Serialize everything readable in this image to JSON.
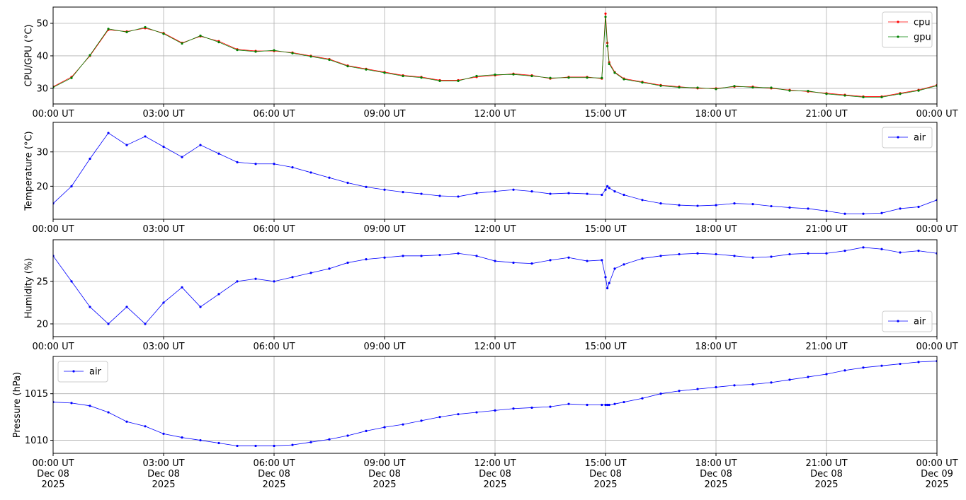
{
  "chart_data": [
    {
      "type": "line",
      "ylabel": "CPU/GPU (°C)",
      "legend": "upper right",
      "grid": true,
      "xlim": [
        0,
        24
      ],
      "ylim": [
        25.2,
        55
      ],
      "yticks": [
        30,
        40,
        50
      ],
      "xticks": [
        {
          "value": 0,
          "label": "00:00 UT"
        },
        {
          "value": 3,
          "label": "03:00 UT"
        },
        {
          "value": 6,
          "label": "06:00 UT"
        },
        {
          "value": 9,
          "label": "09:00 UT"
        },
        {
          "value": 12,
          "label": "12:00 UT"
        },
        {
          "value": 15,
          "label": "15:00 UT"
        },
        {
          "value": 18,
          "label": "18:00 UT"
        },
        {
          "value": 21,
          "label": "21:00 UT"
        },
        {
          "value": 24,
          "label": "00:00 UT"
        }
      ],
      "x": [
        0,
        0.5,
        1,
        1.5,
        2,
        2.5,
        3,
        3.5,
        4,
        4.5,
        5,
        5.5,
        6,
        6.5,
        7,
        7.5,
        8,
        8.5,
        9,
        9.5,
        10,
        10.5,
        11,
        11.5,
        12,
        12.5,
        13,
        13.5,
        14,
        14.5,
        14.9,
        15,
        15.05,
        15.1,
        15.25,
        15.5,
        16,
        16.5,
        17,
        17.5,
        18,
        18.5,
        19,
        19.5,
        20,
        20.5,
        21,
        21.5,
        22,
        22.5,
        23,
        23.5,
        24
      ],
      "series": [
        {
          "name": "cpu",
          "color": "#ff0000",
          "values": [
            30.5,
            33.5,
            40,
            48,
            47.5,
            48.5,
            47,
            44,
            46,
            44.5,
            42,
            41.5,
            41.5,
            41,
            40,
            39,
            37,
            36,
            35,
            34,
            33.5,
            32.5,
            32.5,
            33.5,
            34,
            34.5,
            34,
            33,
            33.5,
            33.5,
            33,
            53,
            44,
            38,
            35,
            33,
            32,
            31,
            30.5,
            30,
            30,
            30.5,
            30.5,
            30,
            29.5,
            29,
            28.5,
            28,
            27.5,
            27.5,
            28.5,
            29.5,
            31
          ]
        },
        {
          "name": "gpu",
          "color": "#008000",
          "values": [
            30.3,
            33.2,
            40.2,
            48.3,
            47.3,
            48.8,
            46.8,
            43.8,
            46.2,
            44.2,
            41.8,
            41.3,
            41.7,
            40.8,
            39.8,
            38.8,
            36.8,
            35.8,
            34.8,
            33.8,
            33.3,
            32.3,
            32.3,
            33.8,
            34.2,
            34.3,
            33.8,
            33.2,
            33.3,
            33.3,
            33.2,
            52,
            43,
            37.5,
            34.8,
            32.8,
            31.8,
            30.8,
            30.3,
            30.2,
            29.8,
            30.7,
            30.3,
            30.2,
            29.3,
            29.2,
            28.3,
            27.8,
            27.3,
            27.3,
            28.3,
            29.3,
            30.8
          ]
        }
      ]
    },
    {
      "type": "line",
      "ylabel": "Temperature (°C)",
      "legend": "upper right",
      "grid": true,
      "xlim": [
        0,
        24
      ],
      "ylim": [
        10.4,
        38.6
      ],
      "yticks": [
        20,
        30
      ],
      "xticks": [
        {
          "value": 0,
          "label": "00:00 UT"
        },
        {
          "value": 3,
          "label": "03:00 UT"
        },
        {
          "value": 6,
          "label": "06:00 UT"
        },
        {
          "value": 9,
          "label": "09:00 UT"
        },
        {
          "value": 12,
          "label": "12:00 UT"
        },
        {
          "value": 15,
          "label": "15:00 UT"
        },
        {
          "value": 18,
          "label": "18:00 UT"
        },
        {
          "value": 21,
          "label": "21:00 UT"
        },
        {
          "value": 24,
          "label": "00:00 UT"
        }
      ],
      "x": [
        0,
        0.5,
        1,
        1.5,
        2,
        2.5,
        3,
        3.5,
        4,
        4.5,
        5,
        5.5,
        6,
        6.5,
        7,
        7.5,
        8,
        8.5,
        9,
        9.5,
        10,
        10.5,
        11,
        11.5,
        12,
        12.5,
        13,
        13.5,
        14,
        14.5,
        14.9,
        15,
        15.05,
        15.1,
        15.25,
        15.5,
        16,
        16.5,
        17,
        17.5,
        18,
        18.5,
        19,
        19.5,
        20,
        20.5,
        21,
        21.5,
        22,
        22.5,
        23,
        23.5,
        24
      ],
      "series": [
        {
          "name": "air",
          "color": "#0000ff",
          "values": [
            15,
            20,
            28,
            35.5,
            32,
            34.5,
            31.5,
            28.5,
            32,
            29.5,
            27,
            26.5,
            26.5,
            25.5,
            24,
            22.5,
            21,
            19.8,
            19,
            18.3,
            17.8,
            17.2,
            17,
            18,
            18.5,
            19,
            18.5,
            17.8,
            18,
            17.8,
            17.5,
            19,
            20,
            19.5,
            18.5,
            17.5,
            16,
            15,
            14.5,
            14.3,
            14.5,
            15,
            14.8,
            14.2,
            13.8,
            13.5,
            12.8,
            12,
            12,
            12.2,
            13.5,
            14,
            16
          ]
        }
      ]
    },
    {
      "type": "line",
      "ylabel": "Humidity (%)",
      "legend": "lower right",
      "grid": true,
      "xlim": [
        0,
        24
      ],
      "ylim": [
        18.5,
        29.9
      ],
      "yticks": [
        20,
        25
      ],
      "xticks": [
        {
          "value": 0,
          "label": "00:00 UT"
        },
        {
          "value": 3,
          "label": "03:00 UT"
        },
        {
          "value": 6,
          "label": "06:00 UT"
        },
        {
          "value": 9,
          "label": "09:00 UT"
        },
        {
          "value": 12,
          "label": "12:00 UT"
        },
        {
          "value": 15,
          "label": "15:00 UT"
        },
        {
          "value": 18,
          "label": "18:00 UT"
        },
        {
          "value": 21,
          "label": "21:00 UT"
        },
        {
          "value": 24,
          "label": "00:00 UT"
        }
      ],
      "x": [
        0,
        0.5,
        1,
        1.5,
        2,
        2.5,
        3,
        3.5,
        4,
        4.5,
        5,
        5.5,
        6,
        6.5,
        7,
        7.5,
        8,
        8.5,
        9,
        9.5,
        10,
        10.5,
        11,
        11.5,
        12,
        12.5,
        13,
        13.5,
        14,
        14.5,
        14.9,
        15,
        15.05,
        15.1,
        15.25,
        15.5,
        16,
        16.5,
        17,
        17.5,
        18,
        18.5,
        19,
        19.5,
        20,
        20.5,
        21,
        21.5,
        22,
        22.5,
        23,
        23.5,
        24
      ],
      "series": [
        {
          "name": "air",
          "color": "#0000ff",
          "values": [
            28,
            25,
            22,
            20,
            22,
            20,
            22.5,
            24.3,
            22,
            23.5,
            25,
            25.3,
            25,
            25.5,
            26,
            26.5,
            27.2,
            27.6,
            27.8,
            28,
            28,
            28.1,
            28.3,
            28,
            27.4,
            27.2,
            27.1,
            27.5,
            27.8,
            27.4,
            27.5,
            25.5,
            24.2,
            24.8,
            26.5,
            27,
            27.7,
            28,
            28.2,
            28.3,
            28.2,
            28,
            27.8,
            27.9,
            28.2,
            28.3,
            28.3,
            28.6,
            29,
            28.8,
            28.4,
            28.6,
            28.3
          ]
        }
      ]
    },
    {
      "type": "line",
      "ylabel": "Pressure (hPa)",
      "legend": "upper left",
      "grid": true,
      "xlim": [
        0,
        24
      ],
      "ylim": [
        1008.6,
        1019.0
      ],
      "yticks": [
        1010,
        1015
      ],
      "xticks": [
        {
          "value": 0,
          "label": "00:00 UT\nDec 08\n2025"
        },
        {
          "value": 3,
          "label": "03:00 UT\nDec 08\n2025"
        },
        {
          "value": 6,
          "label": "06:00 UT\nDec 08\n2025"
        },
        {
          "value": 9,
          "label": "09:00 UT\nDec 08\n2025"
        },
        {
          "value": 12,
          "label": "12:00 UT\nDec 08\n2025"
        },
        {
          "value": 15,
          "label": "15:00 UT\nDec 08\n2025"
        },
        {
          "value": 18,
          "label": "18:00 UT\nDec 08\n2025"
        },
        {
          "value": 21,
          "label": "21:00 UT\nDec 08\n2025"
        },
        {
          "value": 24,
          "label": "00:00 UT\nDec 09\n2025"
        }
      ],
      "x": [
        0,
        0.5,
        1,
        1.5,
        2,
        2.5,
        3,
        3.5,
        4,
        4.5,
        5,
        5.5,
        6,
        6.5,
        7,
        7.5,
        8,
        8.5,
        9,
        9.5,
        10,
        10.5,
        11,
        11.5,
        12,
        12.5,
        13,
        13.5,
        14,
        14.5,
        14.9,
        15,
        15.05,
        15.1,
        15.25,
        15.5,
        16,
        16.5,
        17,
        17.5,
        18,
        18.5,
        19,
        19.5,
        20,
        20.5,
        21,
        21.5,
        22,
        22.5,
        23,
        23.5,
        24
      ],
      "series": [
        {
          "name": "air",
          "color": "#0000ff",
          "values": [
            1014.1,
            1014,
            1013.7,
            1013,
            1012,
            1011.5,
            1010.7,
            1010.3,
            1010,
            1009.7,
            1009.4,
            1009.4,
            1009.4,
            1009.5,
            1009.8,
            1010.1,
            1010.5,
            1011,
            1011.4,
            1011.7,
            1012.1,
            1012.5,
            1012.8,
            1013,
            1013.2,
            1013.4,
            1013.5,
            1013.6,
            1013.9,
            1013.8,
            1013.8,
            1013.8,
            1013.8,
            1013.8,
            1013.9,
            1014.1,
            1014.5,
            1015,
            1015.3,
            1015.5,
            1015.7,
            1015.9,
            1016,
            1016.2,
            1016.5,
            1016.8,
            1017.1,
            1017.5,
            1017.8,
            1018,
            1018.2,
            1018.4,
            1018.5
          ]
        }
      ]
    }
  ]
}
